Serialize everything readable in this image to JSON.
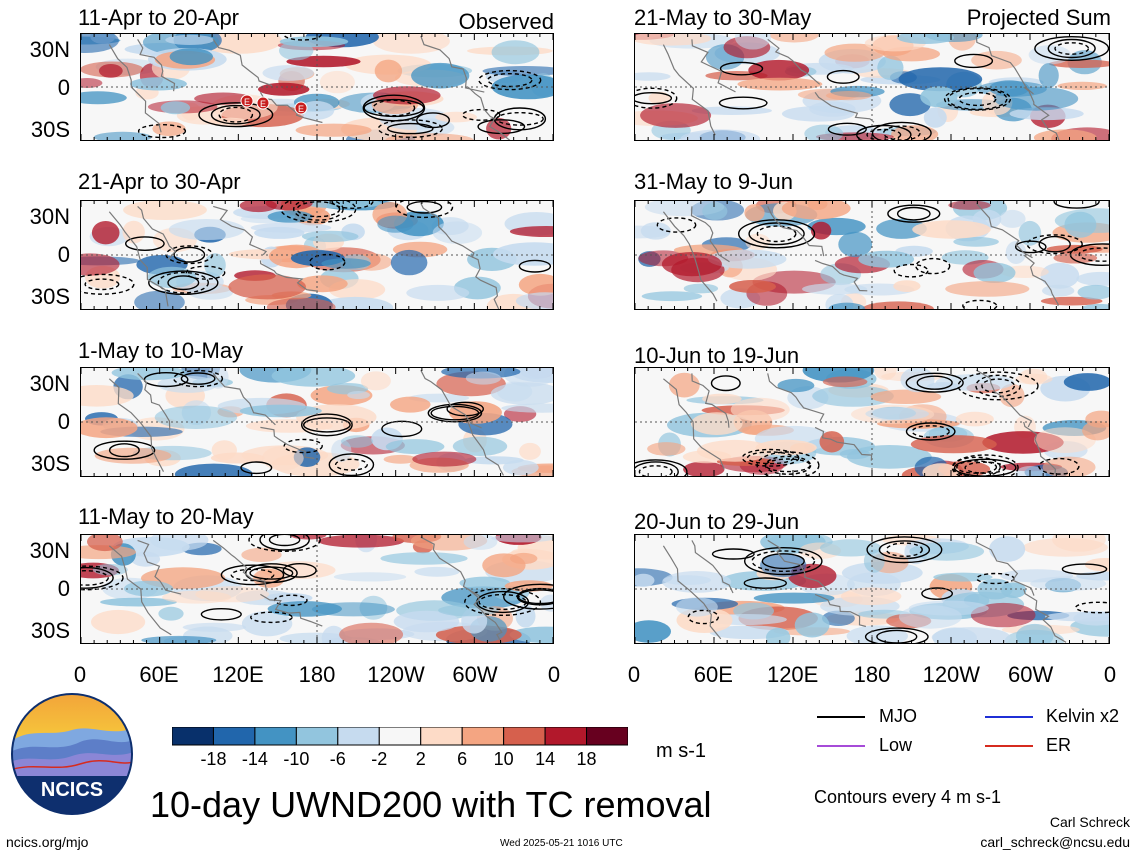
{
  "chart_data": {
    "type": "heatmap",
    "title": "10-day UWND200 with TC removal",
    "subtitle_left": "Observed",
    "subtitle_right": "Projected Sum",
    "x_tick_labels": [
      "0",
      "60E",
      "120E",
      "180",
      "120W",
      "60W",
      "0"
    ],
    "y_tick_labels": [
      "30N",
      "0",
      "30S"
    ],
    "units": "m s-1",
    "colorbar_ticks": [
      "-18",
      "-14",
      "-10",
      "-6",
      "-2",
      "2",
      "6",
      "10",
      "14",
      "18"
    ],
    "colorbar_colors": [
      "#08306b",
      "#2166ac",
      "#4393c3",
      "#92c5de",
      "#c6dbef",
      "#f7f7f7",
      "#fddbc7",
      "#f4a582",
      "#d6604d",
      "#b2182b",
      "#67001f"
    ],
    "contour_note": "Contours every 4 m s-1",
    "panels_observed": [
      "11-Apr to 20-Apr",
      "21-Apr to 30-Apr",
      "1-May to 10-May",
      "11-May to 20-May"
    ],
    "panels_projected": [
      "21-May to 30-May",
      "31-May to 9-Jun",
      "10-Jun to 19-Jun",
      "20-Jun to 29-Jun"
    ],
    "tc_markers": [
      "E",
      "E",
      "E"
    ],
    "legend": [
      {
        "label": "MJO",
        "color": "#000000"
      },
      {
        "label": "Kelvin x2",
        "color": "#1f2fd6"
      },
      {
        "label": "Low",
        "color": "#a64bd8"
      },
      {
        "label": "ER",
        "color": "#d62b1f"
      }
    ]
  },
  "logo_text": "NCICS",
  "footer": {
    "left": "ncics.org/mjo",
    "center": "Wed 2025-05-21 1016 UTC",
    "author": "Carl Schreck",
    "email": "carl_schreck@ncsu.edu"
  }
}
